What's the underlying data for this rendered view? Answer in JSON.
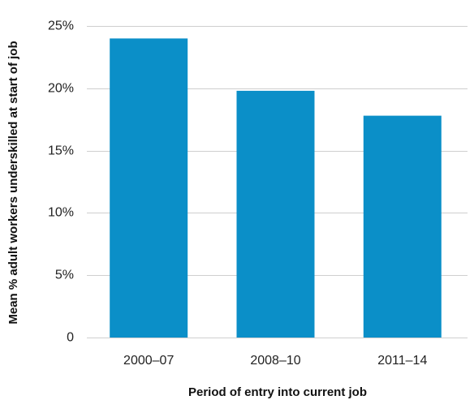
{
  "chart_data": {
    "type": "bar",
    "title": "",
    "xlabel": "Period of entry into current job",
    "ylabel": "Mean % adult workers underskilled at start of job",
    "categories": [
      "2000–07",
      "2008–10",
      "2011–14"
    ],
    "values": [
      24,
      19.8,
      17.8
    ],
    "ylim": [
      0,
      25
    ],
    "yticks": [
      0,
      5,
      10,
      15,
      20,
      25
    ],
    "ytick_labels": [
      "0",
      "5%",
      "10%",
      "15%",
      "20%",
      "25%"
    ],
    "grid": true,
    "legend": "none",
    "colors": {
      "bar": "#0b8fc8",
      "grid": "#cfcfcf",
      "text": "#222222"
    }
  }
}
